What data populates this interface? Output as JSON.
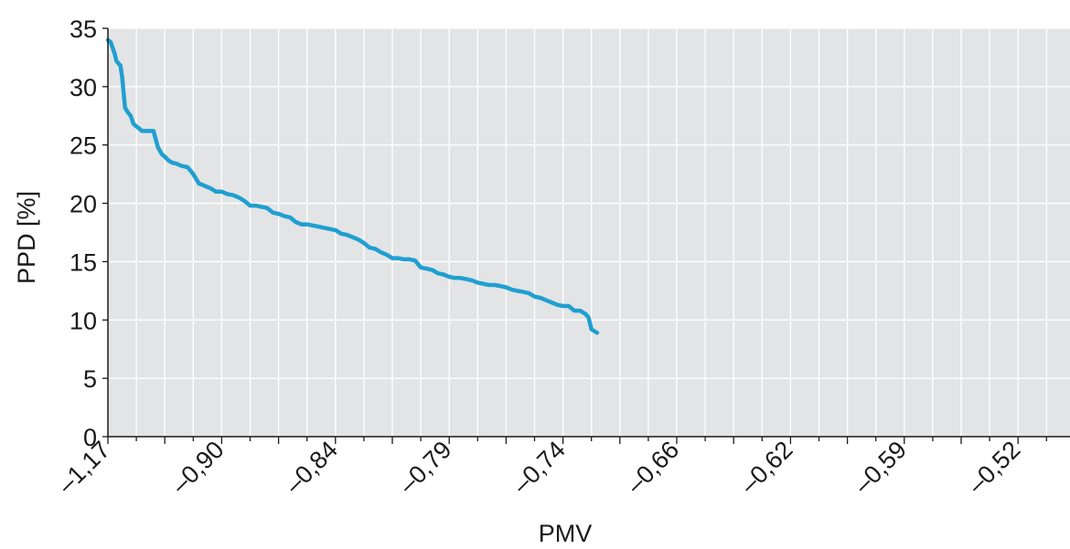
{
  "chart_data": {
    "type": "line",
    "xlabel": "PMV",
    "ylabel": "PPD [%]",
    "ylim": [
      0,
      35
    ],
    "yticks": [
      0,
      5,
      10,
      15,
      20,
      25,
      30,
      35
    ],
    "x_tick_labels": [
      "–1,17",
      "–0,90",
      "–0,84",
      "–0,79",
      "–0,74",
      "–0,66",
      "–0,62",
      "–0,59",
      "–0,52"
    ],
    "grid": true,
    "plot_background": "#e2e4e5",
    "grid_color": "#ffffff",
    "series": [
      {
        "color": "#1f9fd1",
        "note_x": "sample index; labeled ticks every 10 samples",
        "x": [
          0,
          0.5,
          1.2,
          1.5,
          2.2,
          2.5,
          3,
          3.5,
          4,
          4.5,
          5,
          5.5,
          6,
          7,
          8,
          8.8,
          9.5,
          10,
          10.6,
          11.2,
          12,
          13,
          14,
          15,
          16,
          16.5,
          17,
          18,
          19,
          20,
          21,
          22,
          23,
          24,
          25,
          26,
          27,
          28,
          29,
          30,
          31,
          32,
          33,
          34,
          35,
          36,
          37,
          38,
          39,
          40,
          41,
          42,
          43,
          44,
          45,
          46,
          47,
          48,
          49,
          50,
          51,
          52,
          53,
          54,
          55,
          56,
          57,
          58,
          59,
          60,
          61,
          62,
          63,
          64,
          65,
          66,
          67,
          68,
          69,
          70,
          71,
          72,
          73,
          74,
          75,
          76,
          77,
          78,
          79,
          80,
          81,
          82,
          83,
          84,
          84.5,
          85,
          86
        ],
        "y": [
          34,
          33.8,
          32.8,
          32.2,
          31.8,
          30.8,
          28.2,
          27.8,
          27.5,
          26.8,
          26.6,
          26.4,
          26.2,
          26.2,
          26.2,
          24.8,
          24.2,
          24,
          23.7,
          23.5,
          23.4,
          23.2,
          23.1,
          22.5,
          21.7,
          21.6,
          21.5,
          21.3,
          21.0,
          21.0,
          20.8,
          20.7,
          20.5,
          20.2,
          19.8,
          19.8,
          19.7,
          19.6,
          19.2,
          19.1,
          18.9,
          18.8,
          18.4,
          18.2,
          18.2,
          18.1,
          18.0,
          17.9,
          17.8,
          17.7,
          17.4,
          17.3,
          17.1,
          16.9,
          16.6,
          16.2,
          16.1,
          15.8,
          15.6,
          15.3,
          15.3,
          15.2,
          15.2,
          15.1,
          14.5,
          14.4,
          14.3,
          14.0,
          13.9,
          13.7,
          13.6,
          13.6,
          13.5,
          13.4,
          13.2,
          13.1,
          13.0,
          13.0,
          12.9,
          12.8,
          12.6,
          12.5,
          12.4,
          12.3,
          12.0,
          11.9,
          11.7,
          11.5,
          11.3,
          11.2,
          11.2,
          10.8,
          10.8,
          10.5,
          10.2,
          9.2,
          8.9
        ]
      }
    ]
  }
}
